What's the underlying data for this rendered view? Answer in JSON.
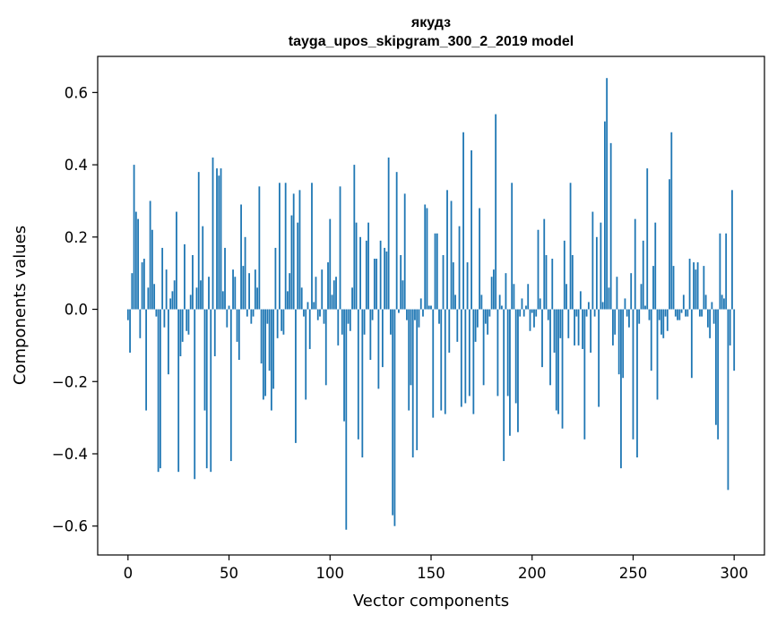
{
  "chart_data": {
    "type": "bar",
    "title": "якудз",
    "subtitle": "tayga_upos_skipgram_300_2_2019 model",
    "xlabel": "Vector components",
    "ylabel": "Components values",
    "xlim": [
      -15,
      315
    ],
    "ylim": [
      -0.68,
      0.7
    ],
    "xticks": [
      0,
      50,
      100,
      150,
      200,
      250,
      300
    ],
    "yticks": [
      -0.6,
      -0.4,
      -0.2,
      0.0,
      0.2,
      0.4,
      0.6
    ],
    "ytick_labels": [
      "−0.6",
      "−0.4",
      "−0.2",
      "0.0",
      "0.2",
      "0.4",
      "0.6"
    ],
    "bar_color": "#1f77b4",
    "values": [
      -0.03,
      -0.12,
      0.1,
      0.4,
      0.27,
      0.25,
      -0.08,
      0.13,
      0.14,
      -0.28,
      0.06,
      0.3,
      0.22,
      0.07,
      -0.02,
      -0.45,
      -0.44,
      0.17,
      -0.05,
      0.11,
      -0.18,
      0.03,
      0.05,
      0.08,
      0.27,
      -0.45,
      -0.13,
      -0.09,
      0.18,
      -0.06,
      -0.07,
      0.04,
      0.15,
      -0.47,
      0.06,
      0.38,
      0.08,
      0.23,
      -0.28,
      -0.44,
      0.09,
      -0.45,
      0.42,
      -0.13,
      0.39,
      0.37,
      0.39,
      0.05,
      0.17,
      -0.05,
      0.01,
      -0.42,
      0.11,
      0.09,
      -0.09,
      -0.14,
      0.29,
      0.12,
      0.2,
      -0.02,
      0.1,
      -0.04,
      -0.02,
      0.11,
      0.06,
      0.34,
      -0.15,
      -0.25,
      -0.24,
      -0.04,
      -0.17,
      -0.28,
      -0.22,
      0.17,
      -0.08,
      0.35,
      -0.06,
      -0.07,
      0.35,
      0.05,
      0.1,
      0.26,
      0.32,
      -0.37,
      0.24,
      0.33,
      0.06,
      -0.02,
      -0.25,
      0.02,
      -0.11,
      0.35,
      0.02,
      0.09,
      -0.03,
      -0.02,
      0.11,
      -0.04,
      -0.21,
      0.13,
      0.25,
      0.04,
      0.08,
      0.09,
      -0.1,
      0.34,
      -0.07,
      -0.31,
      -0.61,
      -0.04,
      -0.06,
      0.06,
      0.4,
      0.24,
      -0.36,
      0.2,
      -0.41,
      -0.07,
      0.19,
      0.24,
      -0.14,
      -0.03,
      0.14,
      0.14,
      -0.22,
      0.19,
      -0.16,
      0.17,
      0.16,
      0.42,
      -0.07,
      -0.57,
      -0.6,
      0.38,
      -0.01,
      0.15,
      0.08,
      0.32,
      -0.03,
      -0.28,
      -0.21,
      -0.41,
      -0.03,
      -0.39,
      -0.05,
      0.03,
      -0.02,
      0.29,
      0.28,
      0.01,
      0.01,
      -0.3,
      0.21,
      0.21,
      -0.04,
      -0.28,
      0.15,
      -0.29,
      0.33,
      -0.12,
      0.3,
      0.13,
      0.04,
      -0.09,
      0.23,
      -0.27,
      0.49,
      -0.26,
      0.13,
      -0.24,
      0.44,
      -0.29,
      -0.09,
      -0.05,
      0.28,
      0.04,
      -0.21,
      -0.04,
      -0.07,
      -0.02,
      0.09,
      0.11,
      0.54,
      -0.24,
      0.04,
      0.01,
      -0.42,
      0.1,
      -0.24,
      -0.35,
      0.35,
      0.07,
      -0.26,
      -0.34,
      -0.02,
      0.03,
      -0.02,
      0.01,
      0.07,
      -0.06,
      -0.01,
      -0.05,
      -0.02,
      0.22,
      0.03,
      -0.16,
      0.25,
      0.15,
      -0.03,
      -0.21,
      0.14,
      -0.12,
      -0.28,
      -0.29,
      -0.08,
      -0.33,
      0.19,
      0.07,
      -0.08,
      0.35,
      0.15,
      -0.1,
      -0.02,
      -0.1,
      0.05,
      -0.11,
      -0.36,
      -0.02,
      0.02,
      -0.12,
      0.27,
      -0.02,
      0.2,
      -0.27,
      0.24,
      0.02,
      0.52,
      0.64,
      0.06,
      0.46,
      -0.1,
      -0.07,
      0.09,
      -0.18,
      -0.44,
      -0.19,
      0.03,
      -0.02,
      -0.05,
      0.1,
      -0.36,
      0.25,
      -0.41,
      -0.04,
      0.07,
      0.19,
      0.01,
      0.39,
      -0.03,
      -0.17,
      0.12,
      0.24,
      -0.25,
      -0.03,
      -0.07,
      -0.08,
      -0.02,
      -0.06,
      0.36,
      0.49,
      0.12,
      -0.02,
      -0.03,
      -0.03,
      -0.01,
      0.04,
      -0.02,
      -0.02,
      0.14,
      -0.19,
      0.13,
      0.11,
      0.13,
      -0.02,
      -0.02,
      0.12,
      0.04,
      -0.05,
      -0.08,
      0.02,
      -0.04,
      -0.32,
      -0.36,
      0.21,
      0.04,
      0.03,
      0.21,
      -0.5,
      -0.1,
      0.33,
      -0.17
    ]
  }
}
